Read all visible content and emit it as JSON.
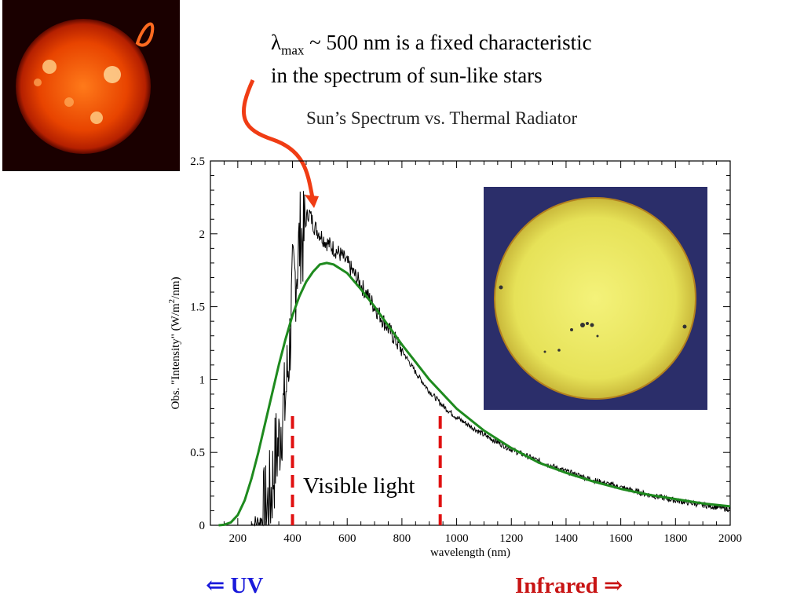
{
  "headline": {
    "lambda_symbol": "λ",
    "lambda_subscript": "max",
    "line1_rest": " ~ 500 nm is a fixed characteristic",
    "line2": "in the spectrum of sun-like stars"
  },
  "labels": {
    "visible": "Visible light",
    "uv": "⇐ UV",
    "infrared": "Infrared ⇒"
  },
  "colors": {
    "observed": "#000000",
    "thermal": "#1e8a1e",
    "visible_bounds": "#e01010",
    "arrow": "#f03c14",
    "uv_text": "#1a1adb",
    "ir_text": "#c81414"
  },
  "images": {
    "uv_sun": "sun-photo-uv-icon",
    "visible_sun": "sun-photo-visible-icon"
  },
  "chart_data": {
    "type": "line",
    "title": "Sun’s Spectrum vs. Thermal Radiator",
    "xlabel": "wavelength (nm)",
    "ylabel_prefix": "Obs. \"Intensity\" (W/m",
    "ylabel_sup": "2",
    "ylabel_suffix": "/nm)",
    "xlim": [
      100,
      2000
    ],
    "ylim": [
      0,
      2.5
    ],
    "x_ticks": [
      200,
      400,
      600,
      800,
      1000,
      1200,
      1400,
      1600,
      1800,
      2000
    ],
    "y_ticks": [
      0,
      0.5,
      1,
      1.5,
      2,
      2.5
    ],
    "y_tick_labels": [
      "0",
      "0.5",
      "1",
      "1.5",
      "2",
      "2.5"
    ],
    "visible_bounds_nm": [
      400,
      940
    ],
    "series": [
      {
        "key": "observed",
        "x": [
          250,
          280,
          300,
          320,
          330,
          340,
          350,
          360,
          370,
          380,
          390,
          400,
          410,
          420,
          430,
          440,
          450,
          460,
          480,
          500,
          520,
          550,
          580,
          600,
          650,
          700,
          750,
          800,
          850,
          900,
          950,
          1000,
          1100,
          1200,
          1300,
          1400,
          1500,
          1600,
          1700,
          1800,
          1900,
          2000
        ],
        "y": [
          0.0,
          0.02,
          0.08,
          0.2,
          0.35,
          0.5,
          0.55,
          0.75,
          0.8,
          1.0,
          1.25,
          1.6,
          1.7,
          1.85,
          2.0,
          1.95,
          2.1,
          2.15,
          2.05,
          2.0,
          1.95,
          1.9,
          1.85,
          1.8,
          1.65,
          1.5,
          1.35,
          1.2,
          1.05,
          0.92,
          0.82,
          0.74,
          0.62,
          0.52,
          0.44,
          0.37,
          0.31,
          0.26,
          0.21,
          0.17,
          0.14,
          0.11
        ]
      },
      {
        "key": "thermal",
        "x": [
          130,
          150,
          175,
          200,
          225,
          250,
          275,
          300,
          325,
          350,
          375,
          400,
          425,
          450,
          475,
          500,
          525,
          550,
          600,
          650,
          700,
          750,
          800,
          850,
          900,
          950,
          1000,
          1100,
          1200,
          1300,
          1400,
          1500,
          1600,
          1700,
          1800,
          1900,
          2000
        ],
        "y": [
          0.0,
          0.003,
          0.02,
          0.07,
          0.17,
          0.32,
          0.5,
          0.7,
          0.9,
          1.1,
          1.28,
          1.44,
          1.57,
          1.67,
          1.74,
          1.79,
          1.8,
          1.79,
          1.73,
          1.62,
          1.5,
          1.37,
          1.24,
          1.12,
          1.0,
          0.9,
          0.8,
          0.65,
          0.53,
          0.43,
          0.36,
          0.3,
          0.25,
          0.21,
          0.18,
          0.15,
          0.13
        ]
      }
    ]
  }
}
